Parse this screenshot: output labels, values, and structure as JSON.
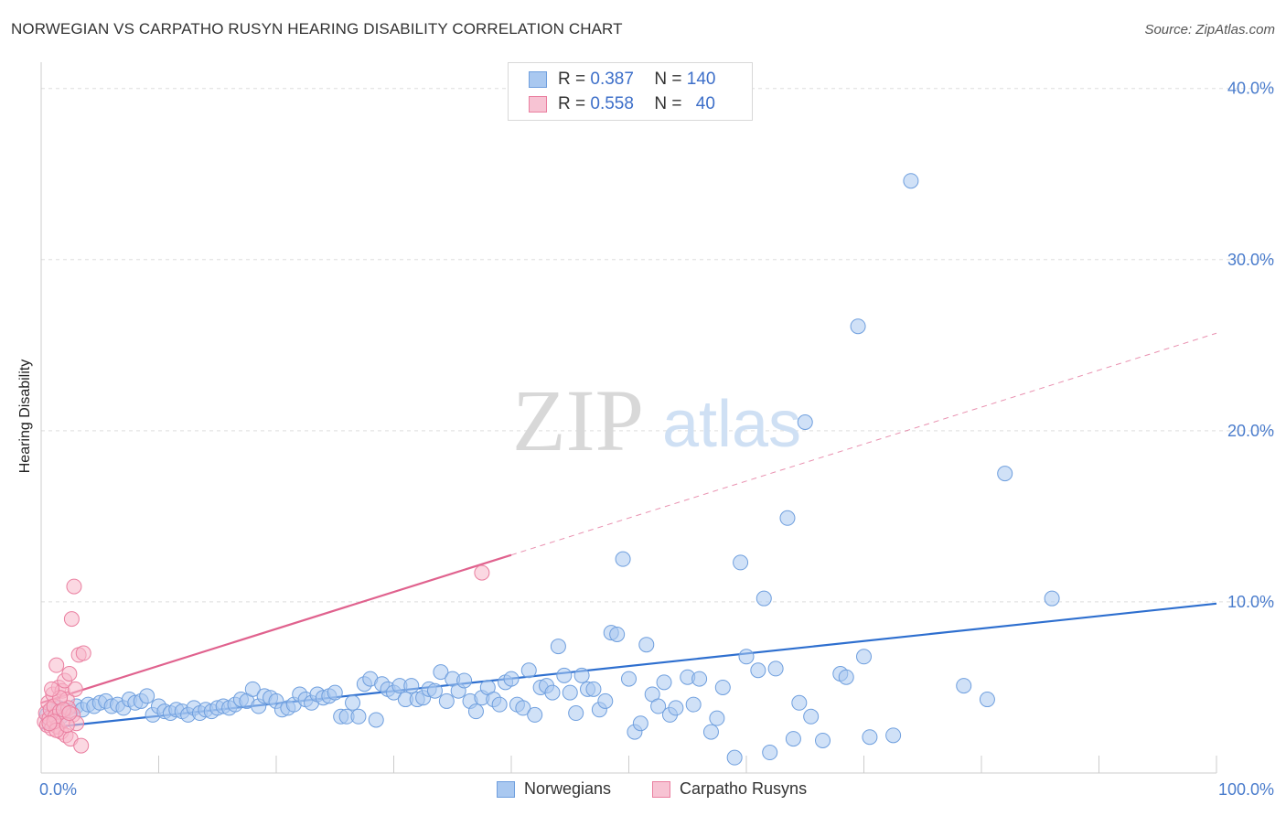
{
  "title": "NORWEGIAN VS CARPATHO RUSYN HEARING DISABILITY CORRELATION CHART",
  "source": "Source: ZipAtlas.com",
  "watermark": {
    "zip": "ZIP",
    "atlas": "atlas"
  },
  "legend": {
    "rows": [
      {
        "r_label": "R =",
        "r_value": "0.387",
        "n_label": "N =",
        "n_value": "140"
      },
      {
        "r_label": "R =",
        "r_value": "0.558",
        "n_label": "N =",
        "n_value": "40"
      }
    ]
  },
  "bottom_legend": {
    "series1": "Norwegians",
    "series2": "Carpatho Rusyns"
  },
  "colors": {
    "blue_fill": "#a9c8f0",
    "blue_stroke": "#6f9fde",
    "blue_line": "#2e6fcf",
    "pink_fill": "#f7b8cb",
    "pink_stroke": "#ea7fa0",
    "pink_line": "#e0628e",
    "tick_text": "#4a7ccc",
    "grid": "#dddddd"
  },
  "chart_data": {
    "type": "scatter",
    "title": "NORWEGIAN VS CARPATHO RUSYN HEARING DISABILITY CORRELATION CHART",
    "xlabel": "",
    "ylabel": "Hearing Disability",
    "xlim": [
      0,
      100
    ],
    "ylim": [
      0,
      41
    ],
    "x_tick_labels": [
      "0.0%",
      "100.0%"
    ],
    "y_ticks": [
      10,
      20,
      30,
      40
    ],
    "y_tick_labels": [
      "10.0%",
      "20.0%",
      "30.0%",
      "40.0%"
    ],
    "grid": true,
    "legend_position": "top-center",
    "series": [
      {
        "name": "Norwegians",
        "r": 0.387,
        "n": 140,
        "trend": {
          "x": [
            0,
            100
          ],
          "y": [
            2.6,
            9.9
          ],
          "dashed_from": null
        },
        "points": [
          [
            0.5,
            3.4
          ],
          [
            0.8,
            3.0
          ],
          [
            1.0,
            3.6
          ],
          [
            1.2,
            3.2
          ],
          [
            1.5,
            3.8
          ],
          [
            1.7,
            3.3
          ],
          [
            2.0,
            3.7
          ],
          [
            2.5,
            3.6
          ],
          [
            3.0,
            3.9
          ],
          [
            3.5,
            3.7
          ],
          [
            4.0,
            4.0
          ],
          [
            4.5,
            3.9
          ],
          [
            5.0,
            4.1
          ],
          [
            5.5,
            4.2
          ],
          [
            6.0,
            3.9
          ],
          [
            6.5,
            4.0
          ],
          [
            7.0,
            3.8
          ],
          [
            7.5,
            4.3
          ],
          [
            8.0,
            4.1
          ],
          [
            8.5,
            4.2
          ],
          [
            9.0,
            4.5
          ],
          [
            9.5,
            3.4
          ],
          [
            10.0,
            3.9
          ],
          [
            10.5,
            3.6
          ],
          [
            11.0,
            3.5
          ],
          [
            11.5,
            3.7
          ],
          [
            12.0,
            3.6
          ],
          [
            12.5,
            3.4
          ],
          [
            13.0,
            3.8
          ],
          [
            13.5,
            3.5
          ],
          [
            14.0,
            3.7
          ],
          [
            14.5,
            3.6
          ],
          [
            15.0,
            3.8
          ],
          [
            15.5,
            3.9
          ],
          [
            16.0,
            3.8
          ],
          [
            16.5,
            4.0
          ],
          [
            17.0,
            4.3
          ],
          [
            17.5,
            4.2
          ],
          [
            18.0,
            4.9
          ],
          [
            18.5,
            3.9
          ],
          [
            19.0,
            4.5
          ],
          [
            19.5,
            4.4
          ],
          [
            20.0,
            4.2
          ],
          [
            20.5,
            3.7
          ],
          [
            21.0,
            3.8
          ],
          [
            21.5,
            4.0
          ],
          [
            22.0,
            4.6
          ],
          [
            22.5,
            4.3
          ],
          [
            23.0,
            4.1
          ],
          [
            23.5,
            4.6
          ],
          [
            24.0,
            4.4
          ],
          [
            24.5,
            4.5
          ],
          [
            25.0,
            4.7
          ],
          [
            25.5,
            3.3
          ],
          [
            26.0,
            3.3
          ],
          [
            26.5,
            4.1
          ],
          [
            27.0,
            3.3
          ],
          [
            27.5,
            5.2
          ],
          [
            28.0,
            5.5
          ],
          [
            28.5,
            3.1
          ],
          [
            29.0,
            5.2
          ],
          [
            29.5,
            4.9
          ],
          [
            30.0,
            4.7
          ],
          [
            30.5,
            5.1
          ],
          [
            31.0,
            4.3
          ],
          [
            31.5,
            5.1
          ],
          [
            32.0,
            4.3
          ],
          [
            32.5,
            4.4
          ],
          [
            33.0,
            4.9
          ],
          [
            33.5,
            4.8
          ],
          [
            34.0,
            5.9
          ],
          [
            34.5,
            4.2
          ],
          [
            35.0,
            5.5
          ],
          [
            35.5,
            4.8
          ],
          [
            36.0,
            5.4
          ],
          [
            36.5,
            4.2
          ],
          [
            37.0,
            3.6
          ],
          [
            37.5,
            4.4
          ],
          [
            38.0,
            5.0
          ],
          [
            38.5,
            4.3
          ],
          [
            39.0,
            4.0
          ],
          [
            39.5,
            5.3
          ],
          [
            40.0,
            5.5
          ],
          [
            40.5,
            4.0
          ],
          [
            41.0,
            3.8
          ],
          [
            41.5,
            6.0
          ],
          [
            42.0,
            3.4
          ],
          [
            42.5,
            5.0
          ],
          [
            43.0,
            5.1
          ],
          [
            43.5,
            4.7
          ],
          [
            44.0,
            7.4
          ],
          [
            44.5,
            5.7
          ],
          [
            45.0,
            4.7
          ],
          [
            45.5,
            3.5
          ],
          [
            46.0,
            5.7
          ],
          [
            46.5,
            4.9
          ],
          [
            47.0,
            4.9
          ],
          [
            47.5,
            3.7
          ],
          [
            48.0,
            4.2
          ],
          [
            48.5,
            8.2
          ],
          [
            49.0,
            8.1
          ],
          [
            49.5,
            12.5
          ],
          [
            50.0,
            5.5
          ],
          [
            50.5,
            2.4
          ],
          [
            51.0,
            2.9
          ],
          [
            51.5,
            7.5
          ],
          [
            52.0,
            4.6
          ],
          [
            52.5,
            3.9
          ],
          [
            53.0,
            5.3
          ],
          [
            53.5,
            3.4
          ],
          [
            54.0,
            3.8
          ],
          [
            55.0,
            5.6
          ],
          [
            55.5,
            4.0
          ],
          [
            56.0,
            5.5
          ],
          [
            57.0,
            2.4
          ],
          [
            57.5,
            3.2
          ],
          [
            58.0,
            5.0
          ],
          [
            59.0,
            0.9
          ],
          [
            59.5,
            12.3
          ],
          [
            60.0,
            6.8
          ],
          [
            61.0,
            6.0
          ],
          [
            61.5,
            10.2
          ],
          [
            62.0,
            1.2
          ],
          [
            62.5,
            6.1
          ],
          [
            63.5,
            14.9
          ],
          [
            64.0,
            2.0
          ],
          [
            64.5,
            4.1
          ],
          [
            65.0,
            20.5
          ],
          [
            65.5,
            3.3
          ],
          [
            66.5,
            1.9
          ],
          [
            68.0,
            5.8
          ],
          [
            68.5,
            5.6
          ],
          [
            69.5,
            26.1
          ],
          [
            70.0,
            6.8
          ],
          [
            70.5,
            2.1
          ],
          [
            72.5,
            2.2
          ],
          [
            74.0,
            34.6
          ],
          [
            78.5,
            5.1
          ],
          [
            80.5,
            4.3
          ],
          [
            82.0,
            17.5
          ],
          [
            86.0,
            10.2
          ]
        ]
      },
      {
        "name": "Carpatho Rusyns",
        "r": 0.558,
        "n": 40,
        "trend": {
          "x": [
            0,
            100
          ],
          "y": [
            4.1,
            25.7
          ],
          "dashed_from": 40
        },
        "points": [
          [
            0.3,
            3.0
          ],
          [
            0.4,
            3.5
          ],
          [
            0.5,
            2.8
          ],
          [
            0.6,
            4.1
          ],
          [
            0.7,
            3.2
          ],
          [
            0.8,
            3.7
          ],
          [
            0.9,
            2.6
          ],
          [
            1.0,
            4.6
          ],
          [
            1.1,
            3.9
          ],
          [
            1.2,
            3.3
          ],
          [
            1.3,
            6.3
          ],
          [
            1.4,
            2.7
          ],
          [
            1.5,
            5.0
          ],
          [
            1.6,
            3.6
          ],
          [
            1.7,
            2.4
          ],
          [
            1.8,
            4.8
          ],
          [
            1.9,
            3.1
          ],
          [
            2.0,
            5.4
          ],
          [
            2.1,
            2.2
          ],
          [
            2.2,
            4.3
          ],
          [
            2.3,
            3.8
          ],
          [
            2.4,
            5.8
          ],
          [
            2.5,
            2.0
          ],
          [
            2.6,
            9.0
          ],
          [
            2.7,
            3.4
          ],
          [
            2.8,
            10.9
          ],
          [
            2.9,
            4.9
          ],
          [
            3.0,
            2.9
          ],
          [
            3.2,
            6.9
          ],
          [
            3.4,
            1.6
          ],
          [
            3.6,
            7.0
          ],
          [
            1.1,
            3.0
          ],
          [
            1.3,
            2.5
          ],
          [
            1.6,
            4.4
          ],
          [
            1.9,
            3.7
          ],
          [
            0.7,
            2.9
          ],
          [
            0.9,
            4.9
          ],
          [
            2.2,
            2.8
          ],
          [
            2.4,
            3.5
          ],
          [
            37.5,
            11.7
          ]
        ]
      }
    ]
  }
}
